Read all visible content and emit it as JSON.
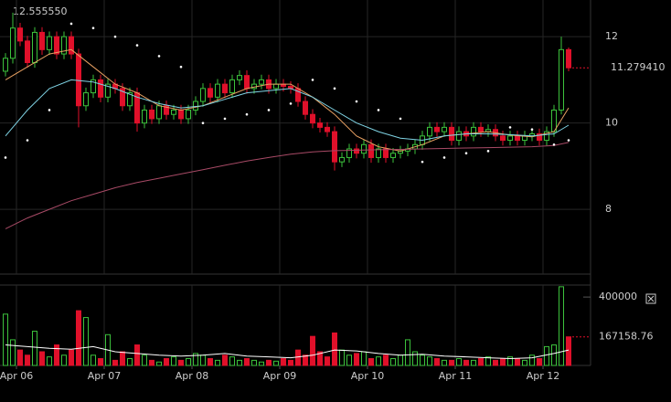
{
  "chart_data": [
    {
      "type": "candlestick",
      "max_label": "12.555550",
      "last_label": "11.279410",
      "xlim": [
        -4.5,
        157
      ],
      "ylim": [
        6.5,
        12.85
      ],
      "yticks": [
        8,
        10,
        12
      ],
      "grid": true,
      "up_color": "#3cc23c",
      "down_color": "#e0102a",
      "x": [
        -3,
        -1,
        1,
        3,
        5,
        7,
        9,
        11,
        13,
        15,
        17,
        19,
        21,
        23,
        25,
        27,
        29,
        31,
        33,
        35,
        37,
        39,
        41,
        43,
        45,
        47,
        49,
        51,
        53,
        55,
        57,
        59,
        61,
        63,
        65,
        67,
        69,
        71,
        73,
        75,
        77,
        79,
        81,
        83,
        85,
        87,
        89,
        91,
        93,
        95,
        97,
        99,
        101,
        103,
        105,
        107,
        109,
        111,
        113,
        115,
        117,
        119,
        121,
        123,
        125,
        127,
        129,
        131,
        133,
        135,
        137,
        139,
        141,
        143,
        145,
        147,
        149,
        151
      ],
      "open": [
        11.2,
        11.5,
        12.2,
        11.9,
        11.4,
        12.1,
        11.7,
        12.0,
        11.6,
        12.0,
        11.6,
        10.4,
        10.7,
        11.0,
        10.6,
        10.9,
        10.8,
        10.4,
        10.7,
        10.0,
        10.3,
        10.1,
        10.4,
        10.2,
        10.3,
        10.1,
        10.3,
        10.5,
        10.8,
        10.6,
        10.9,
        10.7,
        11.0,
        11.1,
        10.8,
        10.9,
        11.0,
        10.8,
        10.9,
        10.85,
        10.8,
        10.5,
        10.2,
        10.0,
        9.9,
        9.8,
        9.1,
        9.2,
        9.4,
        9.3,
        9.5,
        9.2,
        9.4,
        9.2,
        9.3,
        9.35,
        9.4,
        9.5,
        9.7,
        9.9,
        9.8,
        9.9,
        9.6,
        9.8,
        9.7,
        9.9,
        9.8,
        9.85,
        9.7,
        9.6,
        9.7,
        9.6,
        9.7,
        9.75,
        9.6,
        9.8,
        10.3,
        11.7
      ],
      "high": [
        11.62,
        12.55555,
        12.32,
        12.02,
        12.22,
        12.22,
        12.12,
        12.12,
        12.12,
        12.12,
        11.72,
        10.82,
        11.12,
        11.12,
        11.02,
        11.02,
        10.92,
        10.82,
        10.82,
        10.42,
        10.42,
        10.52,
        10.52,
        10.42,
        10.42,
        10.42,
        10.62,
        10.92,
        10.92,
        11.02,
        11.02,
        11.12,
        11.22,
        11.22,
        11.02,
        11.12,
        11.12,
        11.02,
        11.02,
        10.97,
        10.92,
        10.62,
        10.32,
        10.12,
        10.02,
        9.92,
        9.32,
        9.52,
        9.52,
        9.62,
        9.62,
        9.52,
        9.52,
        9.42,
        9.47,
        9.52,
        9.62,
        9.82,
        10.02,
        10.02,
        10.02,
        10.02,
        9.92,
        9.92,
        10.02,
        10.02,
        9.97,
        9.97,
        9.82,
        9.82,
        9.82,
        9.82,
        9.87,
        9.87,
        9.92,
        10.42,
        12.0,
        11.75
      ],
      "low": [
        11.08,
        11.38,
        11.78,
        11.28,
        11.28,
        11.58,
        11.58,
        11.48,
        11.48,
        11.48,
        9.9,
        10.28,
        10.58,
        10.48,
        10.48,
        10.68,
        10.28,
        10.28,
        9.8,
        9.88,
        9.98,
        9.98,
        10.08,
        10.08,
        9.98,
        9.98,
        10.18,
        10.38,
        10.48,
        10.48,
        10.58,
        10.58,
        10.88,
        10.68,
        10.68,
        10.78,
        10.68,
        10.68,
        10.73,
        10.68,
        10.38,
        10.08,
        9.88,
        9.78,
        9.68,
        8.9,
        8.98,
        9.08,
        9.18,
        9.18,
        9.08,
        9.08,
        9.08,
        9.08,
        9.18,
        9.23,
        9.28,
        9.38,
        9.58,
        9.68,
        9.68,
        9.48,
        9.48,
        9.58,
        9.58,
        9.68,
        9.68,
        9.58,
        9.48,
        9.48,
        9.48,
        9.48,
        9.58,
        9.48,
        9.48,
        9.68,
        10.2,
        11.2
      ],
      "close": [
        11.5,
        12.2,
        11.9,
        11.4,
        12.1,
        11.7,
        12.0,
        11.6,
        12.0,
        11.6,
        10.4,
        10.7,
        11.0,
        10.6,
        10.9,
        10.8,
        10.4,
        10.7,
        10.0,
        10.3,
        10.1,
        10.4,
        10.2,
        10.3,
        10.1,
        10.3,
        10.5,
        10.8,
        10.6,
        10.9,
        10.7,
        11.0,
        11.1,
        10.8,
        10.9,
        11.0,
        10.8,
        10.9,
        10.85,
        10.8,
        10.5,
        10.2,
        10.0,
        9.9,
        9.8,
        9.1,
        9.2,
        9.4,
        9.3,
        9.5,
        9.2,
        9.4,
        9.2,
        9.3,
        9.35,
        9.4,
        9.5,
        9.7,
        9.9,
        9.8,
        9.9,
        9.6,
        9.8,
        9.7,
        9.9,
        9.8,
        9.85,
        9.7,
        9.6,
        9.7,
        9.6,
        9.7,
        9.75,
        9.6,
        9.8,
        10.3,
        11.7,
        11.27941
      ],
      "series": [
        {
          "style": "line",
          "color": "#e8a062",
          "x": [
            -3,
            3,
            9,
            15,
            21,
            27,
            33,
            39,
            45,
            51,
            57,
            63,
            69,
            75,
            81,
            87,
            93,
            99,
            105,
            111,
            117,
            123,
            129,
            135,
            141,
            147,
            151
          ],
          "values": [
            11.0,
            11.3,
            11.6,
            11.7,
            11.3,
            10.9,
            10.7,
            10.4,
            10.3,
            10.4,
            10.6,
            10.8,
            10.9,
            10.9,
            10.6,
            10.2,
            9.7,
            9.45,
            9.35,
            9.5,
            9.7,
            9.75,
            9.8,
            9.72,
            9.68,
            9.8,
            10.35
          ]
        },
        {
          "style": "line",
          "color": "#7fd3e4",
          "x": [
            -3,
            3,
            9,
            15,
            21,
            27,
            33,
            39,
            45,
            51,
            57,
            63,
            69,
            75,
            81,
            87,
            93,
            99,
            105,
            111,
            117,
            123,
            129,
            135,
            141,
            147,
            151
          ],
          "values": [
            9.7,
            10.3,
            10.8,
            11.0,
            10.95,
            10.8,
            10.6,
            10.45,
            10.35,
            10.4,
            10.55,
            10.7,
            10.75,
            10.8,
            10.6,
            10.3,
            10.0,
            9.8,
            9.65,
            9.6,
            9.7,
            9.75,
            9.75,
            9.73,
            9.7,
            9.75,
            9.95
          ]
        },
        {
          "style": "line",
          "color": "#a84a66",
          "x": [
            -3,
            3,
            9,
            15,
            21,
            27,
            33,
            39,
            45,
            51,
            57,
            63,
            69,
            75,
            81,
            87,
            93,
            99,
            105,
            111,
            117,
            123,
            129,
            135,
            141,
            147,
            151
          ],
          "values": [
            7.55,
            7.8,
            8.0,
            8.2,
            8.35,
            8.5,
            8.62,
            8.72,
            8.82,
            8.92,
            9.02,
            9.12,
            9.2,
            9.28,
            9.33,
            9.36,
            9.37,
            9.38,
            9.39,
            9.4,
            9.41,
            9.42,
            9.43,
            9.44,
            9.45,
            9.48,
            9.55
          ]
        },
        {
          "style": "dots",
          "color": "#ffffff",
          "x": [
            -3,
            3,
            9,
            15,
            21,
            27,
            33,
            39,
            45,
            51,
            57,
            63,
            69,
            75,
            81,
            87,
            93,
            99,
            105,
            111,
            117,
            123,
            129,
            135,
            141,
            147,
            151
          ],
          "values": [
            9.2,
            9.6,
            10.3,
            12.3,
            12.2,
            12.0,
            11.8,
            11.55,
            11.3,
            10.0,
            10.1,
            10.2,
            10.3,
            10.45,
            11.0,
            10.8,
            10.5,
            10.3,
            10.1,
            9.1,
            9.2,
            9.3,
            9.35,
            9.9,
            9.85,
            9.5,
            9.6
          ]
        }
      ]
    },
    {
      "type": "bar",
      "xlim": [
        -4.5,
        157
      ],
      "ylim": [
        0,
        470000
      ],
      "yticks": [
        400000,
        167158.76
      ],
      "xticks": [
        {
          "value": 0,
          "label": "Apr 06"
        },
        {
          "value": 24,
          "label": "Apr 07"
        },
        {
          "value": 48,
          "label": "Apr 08"
        },
        {
          "value": 72,
          "label": "Apr 09"
        },
        {
          "value": 96,
          "label": "Apr 10"
        },
        {
          "value": 120,
          "label": "Apr 11"
        },
        {
          "value": 144,
          "label": "Apr 12"
        }
      ],
      "x": [
        -3,
        -1,
        1,
        3,
        5,
        7,
        9,
        11,
        13,
        15,
        17,
        19,
        21,
        23,
        25,
        27,
        29,
        31,
        33,
        35,
        37,
        39,
        41,
        43,
        45,
        47,
        49,
        51,
        53,
        55,
        57,
        59,
        61,
        63,
        65,
        67,
        69,
        71,
        73,
        75,
        77,
        79,
        81,
        83,
        85,
        87,
        89,
        91,
        93,
        95,
        97,
        99,
        101,
        103,
        105,
        107,
        109,
        111,
        113,
        115,
        117,
        119,
        121,
        123,
        125,
        127,
        129,
        131,
        133,
        135,
        137,
        139,
        141,
        143,
        145,
        147,
        149,
        151
      ],
      "values": [
        300000,
        150000,
        90000,
        60000,
        200000,
        80000,
        50000,
        120000,
        60000,
        90000,
        320000,
        280000,
        60000,
        40000,
        180000,
        30000,
        80000,
        40000,
        120000,
        60000,
        30000,
        20000,
        40000,
        50000,
        30000,
        40000,
        70000,
        60000,
        40000,
        30000,
        60000,
        50000,
        30000,
        40000,
        30000,
        20000,
        30000,
        25000,
        40000,
        30000,
        90000,
        60000,
        170000,
        80000,
        50000,
        190000,
        90000,
        60000,
        70000,
        80000,
        40000,
        50000,
        60000,
        40000,
        60000,
        150000,
        80000,
        60000,
        50000,
        40000,
        30000,
        30000,
        40000,
        30000,
        30000,
        40000,
        50000,
        30000,
        40000,
        50000,
        40000,
        30000,
        60000,
        40000,
        110000,
        120000,
        460000,
        167158.76
      ],
      "series": [
        {
          "style": "line",
          "color": "#ffffff",
          "x": [
            -3,
            3,
            9,
            15,
            21,
            27,
            33,
            39,
            45,
            51,
            57,
            63,
            69,
            75,
            81,
            87,
            93,
            99,
            105,
            111,
            117,
            123,
            129,
            135,
            141,
            147,
            151
          ],
          "values": [
            120000,
            110000,
            100000,
            95000,
            110000,
            80000,
            70000,
            60000,
            55000,
            60000,
            70000,
            55000,
            50000,
            45000,
            60000,
            90000,
            85000,
            70000,
            60000,
            65000,
            55000,
            50000,
            45000,
            40000,
            45000,
            70000,
            90000
          ]
        }
      ]
    }
  ]
}
